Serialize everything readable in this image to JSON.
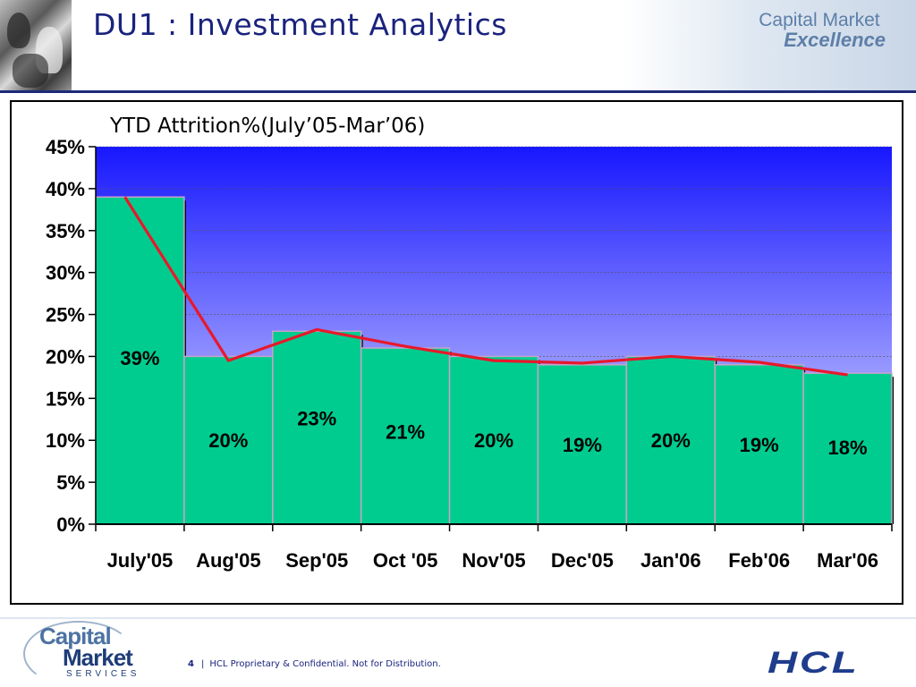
{
  "header": {
    "title": "DU1 : Investment Analytics",
    "brand_line1": "Capital Market",
    "brand_line2": "Excellence"
  },
  "chart_data": {
    "type": "bar",
    "title": "YTD Attrition%(July’05-Mar’06)",
    "xlabel": "",
    "ylabel": "",
    "categories": [
      "July'05",
      "Aug'05",
      "Sep'05",
      "Oct '05",
      "Nov'05",
      "Dec'05",
      "Jan'06",
      "Feb'06",
      "Mar'06"
    ],
    "values": [
      39,
      20,
      23,
      21,
      20,
      19,
      20,
      19,
      18
    ],
    "data_labels": [
      "39%",
      "20%",
      "23%",
      "21%",
      "20%",
      "19%",
      "20%",
      "19%",
      "18%"
    ],
    "line_values": [
      39,
      19.5,
      23.2,
      21.2,
      19.5,
      19.2,
      20,
      19.3,
      17.8
    ],
    "ylim": [
      0,
      45
    ],
    "yticks": [
      "0%",
      "5%",
      "10%",
      "15%",
      "20%",
      "25%",
      "30%",
      "35%",
      "40%",
      "45%"
    ],
    "grid": true,
    "colors": {
      "bar": "#00cc8f",
      "bar_edge": "#c8a2c8",
      "line": "#e8182b",
      "plot_top": "#1717ff",
      "plot_bottom": "#f0f0ff"
    }
  },
  "footer": {
    "logo_line1": "Capital",
    "logo_line2": "Market",
    "logo_line3": "SERVICES",
    "page_number": "4",
    "separator": "|",
    "note": "HCL Proprietary & Confidential. Not for Distribution.",
    "company_logo": "HCL"
  }
}
